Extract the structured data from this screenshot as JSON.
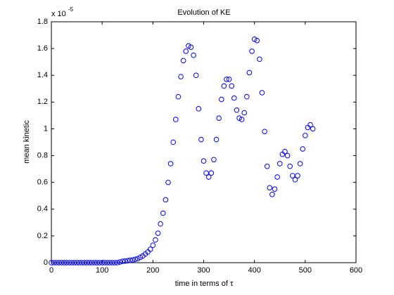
{
  "chart_data": {
    "type": "scatter",
    "title": "Evolution of KE",
    "x_label": "time in terms of τ",
    "y_label": "mean kinetic",
    "y_scale": {
      "base": "x 10",
      "exponent": "-5"
    },
    "xlim": [
      0,
      600
    ],
    "xticks": [
      0,
      100,
      200,
      300,
      400,
      500,
      600
    ],
    "ylim": [
      0,
      1.8
    ],
    "yticks": [
      0,
      0.2,
      0.4,
      0.6,
      0.8,
      1,
      1.2,
      1.4,
      1.6,
      1.8
    ],
    "marker": "circle",
    "color": "#0000ff",
    "x": [
      0,
      5,
      10,
      15,
      20,
      25,
      30,
      35,
      40,
      45,
      50,
      55,
      60,
      65,
      70,
      75,
      80,
      85,
      90,
      95,
      100,
      105,
      110,
      115,
      120,
      125,
      130,
      135,
      140,
      145,
      150,
      155,
      160,
      165,
      170,
      175,
      180,
      185,
      190,
      195,
      200,
      205,
      210,
      215,
      220,
      225,
      230,
      235,
      240,
      245,
      250,
      255,
      260,
      265,
      270,
      275,
      280,
      285,
      290,
      295,
      300,
      305,
      310,
      315,
      320,
      325,
      330,
      335,
      340,
      345,
      350,
      355,
      360,
      365,
      370,
      375,
      380,
      385,
      390,
      395,
      400,
      405,
      410,
      415,
      420,
      425,
      430,
      435,
      440,
      445,
      450,
      455,
      460,
      465,
      470,
      475,
      480,
      485,
      490,
      495,
      500,
      505,
      510,
      515
    ],
    "values": [
      0,
      0,
      0,
      0,
      0,
      0,
      0,
      0,
      0,
      0,
      0,
      0,
      0,
      0,
      0,
      0,
      0,
      0,
      0,
      0,
      0,
      0,
      0,
      0,
      0,
      0,
      0,
      0.005,
      0.01,
      0.012,
      0.015,
      0.018,
      0.02,
      0.025,
      0.03,
      0.04,
      0.05,
      0.065,
      0.08,
      0.1,
      0.13,
      0.17,
      0.22,
      0.29,
      0.37,
      0.47,
      0.6,
      0.74,
      0.9,
      1.07,
      1.24,
      1.39,
      1.51,
      1.58,
      1.62,
      1.61,
      1.55,
      1.4,
      1.15,
      0.92,
      0.76,
      0.67,
      0.64,
      0.67,
      0.77,
      0.92,
      1.08,
      1.22,
      1.32,
      1.37,
      1.37,
      1.32,
      1.23,
      1.14,
      1.08,
      1.07,
      1.12,
      1.24,
      1.42,
      1.58,
      1.67,
      1.66,
      1.52,
      1.27,
      0.98,
      0.72,
      0.56,
      0.51,
      0.55,
      0.64,
      0.74,
      0.81,
      0.83,
      0.8,
      0.72,
      0.65,
      0.62,
      0.65,
      0.74,
      0.85,
      0.95,
      1.01,
      1.03,
      1
    ]
  }
}
